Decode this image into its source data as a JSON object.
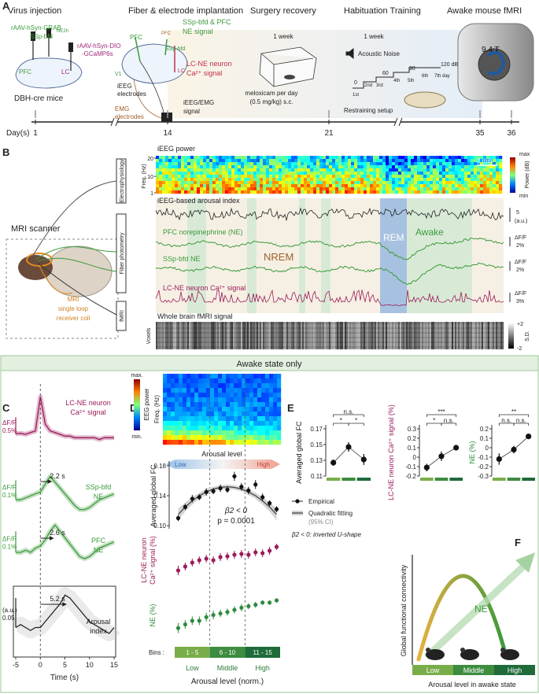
{
  "panel_a": {
    "label": "A",
    "stages": [
      "Virus injection",
      "Fiber & electrode implantation",
      "Surgery recovery",
      "Habituation Training",
      "Awake mouse fMRI"
    ],
    "virus": {
      "grab": "rAAV-hSyn-GRAB",
      "grab_sub": "NE2h",
      "ssp": "SSp-bfd",
      "dio": "rAAV-hSyn-DIO",
      "gcamp": "-GCaMP6s",
      "pfc": "PFC",
      "lc": "LC",
      "mice": "DBH-cre mice"
    },
    "implant": {
      "pfc": "PFC",
      "pfc_small": "PFC",
      "ssp_pfc": "SSp-bfd & PFC",
      "ne_signal": "NE signal",
      "ssp": "SSp-bfd",
      "v1": "V1",
      "lc_ne": "LC-NE neuron",
      "ca": "Ca²⁺ signal",
      "lc": "LC",
      "ieeg": "iEEG",
      "electrodes": "electrodes",
      "emg": "EMG",
      "emg_electrodes": "electrodes",
      "ieeg_emg": "iEEG/EMG",
      "signal": "signal"
    },
    "recovery": {
      "duration": "1 week",
      "drug": "meloxicam per day",
      "dose": "(0.5 mg/kg) s.c."
    },
    "habituation": {
      "duration": "1 week",
      "noise": "Acoustic Noise",
      "levels": [
        "0",
        "60",
        "90",
        "120 dB"
      ],
      "days": [
        "1st",
        "2nd",
        "3rd",
        "4th",
        "5th",
        "6th",
        "7th day"
      ],
      "setup": "Restraining setup"
    },
    "fmri": {
      "field": "9.4 T"
    },
    "timeline": {
      "label": "Day(s)",
      "days": [
        1,
        14,
        21,
        35,
        36
      ]
    }
  },
  "panel_b": {
    "label": "B",
    "scanner": "MRI scanner",
    "coil": [
      "MRI",
      "single loop",
      "receiver coil"
    ],
    "modalities": [
      "Electrophysiology",
      "Fiber photometry",
      "fMRI"
    ],
    "spectrogram": {
      "title": "iEEG power",
      "ylabel": "Freq. (Hz)",
      "ylim": [
        1,
        20
      ],
      "yticks": [
        1,
        10,
        20
      ],
      "scale": "2 min",
      "cbar": [
        "max",
        "Power (dB)",
        "min"
      ]
    },
    "arousal": {
      "title": "iEEG-based arousal index",
      "scale": "5",
      "unit": "(a.u.)"
    },
    "traces": [
      {
        "name": "PFC norepinephrine (NE)",
        "color": "#3c9a3c",
        "scale_unit": "ΔF/F",
        "scale": "2%"
      },
      {
        "name": "SSp-bfd NE",
        "color": "#3c9a3c",
        "scale_unit": "ΔF/F",
        "scale": "2%"
      },
      {
        "name": "LC-NE neuron Ca²⁺ signal",
        "color": "#9b1b5a",
        "scale_unit": "ΔF/F",
        "scale": "3%"
      }
    ],
    "states": {
      "nrem": "NREM",
      "rem": "REM",
      "awake": "Awake"
    },
    "fmri": {
      "title": "Whole brain fMRI signal",
      "ylabel": "Voxels",
      "cbar": [
        "+2",
        "S.D.",
        "-2"
      ]
    }
  },
  "banner": "Awake state only",
  "panel_c": {
    "label": "C",
    "xlabel": "Time (s)",
    "xlim": [
      -5,
      15
    ],
    "xticks": [
      -5,
      0,
      5,
      10,
      15
    ],
    "x": [
      -5,
      -4,
      -3,
      -2,
      -1,
      0,
      1,
      2,
      3,
      4,
      5,
      6,
      7,
      8,
      9,
      10,
      11,
      12,
      13,
      14,
      15
    ],
    "series": [
      {
        "label_lines": [
          "LC-NE neuron",
          "Ca²⁺ signal"
        ],
        "color": "#9b1b5a",
        "ylim": [
          -0.3,
          1.2
        ],
        "values": [
          0.02,
          0.03,
          0,
          0.05,
          0.1,
          1.1,
          0.3,
          0.1,
          0.05,
          0,
          -0.05,
          -0.05,
          -0.1,
          -0.1,
          -0.1,
          -0.1,
          -0.1,
          -0.15,
          -0.1,
          -0.1,
          -0.1
        ],
        "scale_unit": "ΔF/F",
        "scale": {
          "value": 0.5,
          "label": "0.5%"
        }
      },
      {
        "label_lines": [
          "SSp-bfd",
          "NE"
        ],
        "color": "#3c9a3c",
        "ylim": [
          -0.08,
          0.15
        ],
        "values": [
          0,
          0,
          0.01,
          0.02,
          0.03,
          0.04,
          0.08,
          0.12,
          0.09,
          0.06,
          0.03,
          0,
          -0.03,
          -0.05,
          -0.05,
          -0.04,
          -0.02,
          0,
          0.01,
          0.02,
          0.03
        ],
        "scale_unit": "ΔF/F",
        "scale": {
          "value": 0.1,
          "label": "0.1%"
        },
        "lag": {
          "value": 2.2,
          "label": "2.2 s"
        }
      },
      {
        "label_lines": [
          "PFC",
          "NE"
        ],
        "color": "#3c9a3c",
        "ylim": [
          -0.06,
          0.15
        ],
        "values": [
          0,
          0,
          0.01,
          0,
          0.02,
          0.03,
          0.06,
          0.1,
          0.13,
          0.1,
          0.07,
          0.04,
          0.01,
          -0.02,
          -0.03,
          -0.02,
          0,
          0.02,
          0.03,
          0.04,
          0.05
        ],
        "scale_unit": "ΔF/F",
        "scale": {
          "value": 0.1,
          "label": "0.1%"
        },
        "lag": {
          "value": 2.6,
          "label": "2.6 s"
        }
      },
      {
        "label_lines": [
          "Arousal",
          "index"
        ],
        "color": "#222222",
        "ylim": [
          -0.05,
          0.07
        ],
        "values": [
          0,
          0.005,
          0,
          -0.005,
          0,
          0,
          0.01,
          0.02,
          0.03,
          0.04,
          0.055,
          0.05,
          0.04,
          0.03,
          0.02,
          0.01,
          0.005,
          0,
          -0.005,
          -0.01,
          0
        ],
        "scale_unit": "(a.u.)",
        "scale": {
          "value": 0.05,
          "label": "0.05"
        },
        "lag": {
          "value": 5.2,
          "label": "5.2 s"
        }
      }
    ]
  },
  "panel_d": {
    "label": "D",
    "spectrogram": {
      "cbar": [
        "max.",
        "EEG power",
        "min."
      ],
      "ylabel": "Freq. (Hz)"
    },
    "arousal_level": "Arousal level",
    "low": "Low",
    "high": "High",
    "x": [
      1,
      2,
      3,
      4,
      5,
      6,
      7,
      8,
      9,
      10,
      11,
      12,
      13,
      14,
      15
    ],
    "xlim": [
      0.5,
      15.5
    ],
    "fc": {
      "ylabel": "Averaged global FC",
      "ylim": [
        0.1,
        0.18
      ],
      "yticks": [
        {
          "value": 0.1,
          "label": "0.10"
        },
        0.14,
        0.18
      ],
      "color": "#111111",
      "values": [
        0.11,
        0.125,
        0.136,
        0.138,
        0.145,
        0.146,
        0.15,
        0.148,
        0.166,
        0.152,
        0.147,
        0.155,
        0.138,
        0.13,
        0.122
      ],
      "errors": [
        0.004,
        0.004,
        0.005,
        0.004,
        0.005,
        0.004,
        0.005,
        0.004,
        0.006,
        0.005,
        0.005,
        0.006,
        0.005,
        0.004,
        0.004
      ],
      "fit_values": [
        0.115,
        0.125,
        0.133,
        0.14,
        0.145,
        0.149,
        0.151,
        0.152,
        0.151,
        0.149,
        0.145,
        0.14,
        0.133,
        0.125,
        0.115
      ],
      "fit_ci": [
        0.008,
        0.006,
        0.005,
        0.004,
        0.004,
        0.003,
        0.003,
        0.003,
        0.003,
        0.003,
        0.004,
        0.004,
        0.005,
        0.006,
        0.008
      ],
      "beta": "β2 < 0",
      "p": "p = 0.0001"
    },
    "ca": {
      "ylabel_lines": [
        "LC-NE neuron",
        "Ca²⁺ signal (%)"
      ],
      "ylim": [
        -0.35,
        0.3
      ],
      "color": "#9b1b5a",
      "values": [
        -0.15,
        -0.1,
        -0.05,
        -0.02,
        0,
        -0.02,
        0.02,
        0.03,
        0.05,
        0.06,
        0.05,
        0.08,
        0.07,
        0.1,
        0.15
      ],
      "errors": [
        0.06,
        0.05,
        0.05,
        0.05,
        0.05,
        0.05,
        0.05,
        0.05,
        0.05,
        0.05,
        0.05,
        0.05,
        0.05,
        0.05,
        0.04
      ]
    },
    "ne": {
      "ylabel": "NE (%)",
      "ylim": [
        -0.35,
        0.3
      ],
      "color": "#2e8b3e",
      "values": [
        -0.2,
        -0.15,
        -0.1,
        -0.1,
        -0.05,
        -0.02,
        0,
        0.02,
        0.05,
        0.08,
        0.1,
        0.12,
        0.15,
        0.15,
        0.18
      ],
      "errors": [
        0.07,
        0.06,
        0.06,
        0.06,
        0.06,
        0.06,
        0.05,
        0.05,
        0.05,
        0.05,
        0.04,
        0.04,
        0.03,
        0.03,
        0.03
      ]
    },
    "bins_label": "Bins :",
    "bins": [
      "1 - 5",
      "6 - 10",
      "11 - 15"
    ],
    "groups": [
      "Low",
      "Middle",
      "High"
    ],
    "xlabel": "Arousal level (norm.)",
    "legend": {
      "empirical": "Empirical",
      "fit": "Quadratic fitting",
      "ci": "(95% CI)",
      "note": "β2 < 0: inverted U-shape"
    }
  },
  "panel_e": {
    "label": "E",
    "plots": [
      {
        "ylabel": "Averaged global FC",
        "color": "#111111",
        "ylim": [
          0.11,
          0.17
        ],
        "yticks": [
          0.11,
          0.13,
          0.15,
          0.17
        ],
        "values": [
          0.127,
          0.147,
          0.131
        ],
        "errors": [
          0.004,
          0.006,
          0.007
        ],
        "significance": [
          "n.s.",
          "*",
          "*"
        ]
      },
      {
        "ylabel": "LC-NE neuron Ca²⁺ signal (%)",
        "color": "#9b1b5a",
        "ylim": [
          -0.2,
          0.3
        ],
        "yticks": [
          -0.2,
          -0.1,
          0,
          0.1,
          0.2,
          0.3
        ],
        "values": [
          -0.11,
          0.01,
          0.1
        ],
        "errors": [
          0.04,
          0.05,
          0.02
        ],
        "significance": [
          "***",
          "*",
          "n.s."
        ]
      },
      {
        "ylabel": "NE (%)",
        "color": "#2e8b3e",
        "ylim": [
          -0.3,
          0.2
        ],
        "yticks": [
          -0.3,
          -0.2,
          -0.1,
          0,
          0.1,
          0.2
        ],
        "values": [
          -0.12,
          -0.02,
          0.12
        ],
        "errors": [
          0.06,
          0.04,
          0.02
        ],
        "significance": [
          "**",
          "n.s.",
          "n.s."
        ]
      }
    ]
  },
  "panel_f": {
    "label": "F",
    "ylabel": "Global functional connectivity",
    "ne": "NE",
    "groups": [
      "Low",
      "Middle",
      "High"
    ],
    "xlabel": "Arousal level in awake state"
  }
}
